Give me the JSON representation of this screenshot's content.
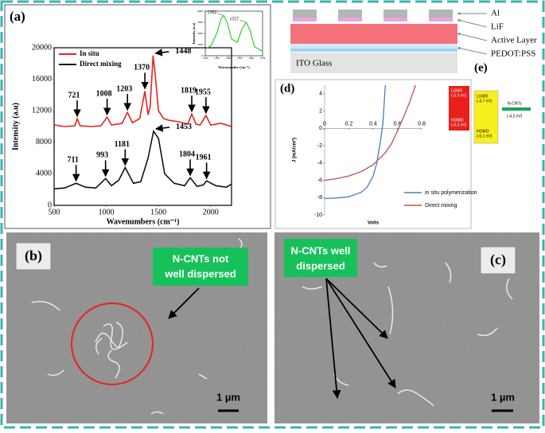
{
  "panel_a": {
    "label": "(a)",
    "chart": {
      "type": "line",
      "xlabel": "Wavenumbers (cm⁻¹)",
      "ylabel": "Intensity (a.u)",
      "xlim": [
        500,
        2200
      ],
      "xticks": [
        500,
        1000,
        1500,
        2000
      ],
      "ylim": [
        0,
        20000
      ],
      "yticks": [
        0,
        4000,
        8000,
        12000,
        16000,
        20000
      ],
      "series": [
        {
          "name": "In situ",
          "color": "#e8231f",
          "x": [
            500,
            600,
            700,
            721,
            750,
            850,
            950,
            1008,
            1050,
            1150,
            1203,
            1250,
            1320,
            1370,
            1400,
            1420,
            1448,
            1470,
            1500,
            1550,
            1600,
            1700,
            1780,
            1819,
            1860,
            1900,
            1955,
            2000,
            2100,
            2200
          ],
          "values": [
            10200,
            10000,
            10100,
            11000,
            10100,
            10000,
            10100,
            11200,
            10200,
            10400,
            11800,
            10500,
            11000,
            14500,
            11500,
            12500,
            19000,
            16500,
            12000,
            11000,
            10800,
            10600,
            10300,
            11600,
            10300,
            10200,
            11400,
            10200,
            10400,
            10000
          ]
        },
        {
          "name": "Direct mixing",
          "color": "#111111",
          "x": [
            500,
            600,
            711,
            800,
            900,
            993,
            1050,
            1120,
            1181,
            1260,
            1330,
            1400,
            1453,
            1500,
            1560,
            1650,
            1750,
            1804,
            1870,
            1930,
            1961,
            2050,
            2150,
            2200
          ],
          "values": [
            2100,
            2200,
            2800,
            2300,
            2200,
            3400,
            2500,
            3200,
            4800,
            2800,
            3000,
            6000,
            9400,
            8500,
            4000,
            2800,
            2500,
            3500,
            2400,
            2600,
            3100,
            2500,
            2300,
            2700
          ]
        }
      ],
      "peaks": [
        {
          "x": 721,
          "y": 11000
        },
        {
          "x": 1008,
          "y": 11200
        },
        {
          "x": 1203,
          "y": 11800
        },
        {
          "x": 1370,
          "y": 14500
        },
        {
          "x": 1448,
          "y": 19000
        },
        {
          "x": 1819,
          "y": 11600
        },
        {
          "x": 1955,
          "y": 11400
        },
        {
          "x": 711,
          "y": 2800
        },
        {
          "x": 993,
          "y": 3400
        },
        {
          "x": 1181,
          "y": 4800
        },
        {
          "x": 1453,
          "y": 9400
        },
        {
          "x": 1804,
          "y": 3500
        },
        {
          "x": 1961,
          "y": 3100
        }
      ]
    },
    "inset": {
      "type": "line",
      "xlabel": "Wavenumber (cm⁻¹)",
      "ylabel": "Intensity (a.u)",
      "xlim": [
        1200,
        1700
      ],
      "xticks": [
        1200,
        1300,
        1400,
        1500,
        1600,
        1700
      ],
      "ylim": [
        0,
        4000
      ],
      "yticks": [
        0,
        1000,
        2000,
        3000,
        4000
      ],
      "series": [
        {
          "color": "#2ed12e",
          "x": [
            1200,
            1250,
            1300,
            1340,
            1362,
            1390,
            1430,
            1480,
            1520,
            1557,
            1590,
            1630,
            1700
          ],
          "values": [
            600,
            900,
            2000,
            3400,
            3600,
            3000,
            1500,
            1200,
            2400,
            3000,
            2300,
            800,
            400
          ]
        }
      ],
      "peaks": [
        {
          "x": 1362,
          "y": 3600
        },
        {
          "x": 1557,
          "y": 3000
        }
      ]
    }
  },
  "device": {
    "layers": [
      "Al",
      "LiF",
      "Active Layer",
      "PEDOT:PSS"
    ],
    "substrate": "ITO Glass"
  },
  "panel_d": {
    "label": "(d)",
    "chart": {
      "type": "line",
      "xlabel": "Volts",
      "ylabel": "J (mA/cm²)",
      "xlim": [
        0,
        0.8
      ],
      "xticks": [
        0,
        0.2,
        0.4,
        0.6,
        0.8
      ],
      "ylim": [
        -10,
        5
      ],
      "yticks": [
        -10,
        -8,
        -6,
        -4,
        -2,
        0,
        2,
        4
      ],
      "series": [
        {
          "name": "in situ polymerization",
          "color": "#4a7ebb",
          "x": [
            0,
            0.1,
            0.2,
            0.3,
            0.35,
            0.4,
            0.43,
            0.46,
            0.48,
            0.5
          ],
          "values": [
            -8.1,
            -8.05,
            -7.9,
            -7.4,
            -6.8,
            -5.5,
            -4,
            -1.5,
            0.5,
            5
          ]
        },
        {
          "name": "Direct mixing",
          "color": "#c0504d",
          "x": [
            0,
            0.1,
            0.2,
            0.3,
            0.4,
            0.5,
            0.55,
            0.6,
            0.65,
            0.7,
            0.75
          ],
          "values": [
            -6,
            -5.8,
            -5.5,
            -5,
            -4.2,
            -2.8,
            -1.8,
            -0.3,
            1.3,
            3,
            5
          ]
        }
      ]
    }
  },
  "panel_e": {
    "label": "(e)",
    "donor": {
      "lumo": [
        "LUMO",
        "(-3.3 eV)"
      ],
      "homo": [
        "HOMO",
        "(-5.2 eV)"
      ]
    },
    "acceptor": {
      "lumo": [
        "LUMO",
        "(-3.7 eV)"
      ],
      "homo": [
        "HOMO",
        "(-6.1 eV)"
      ]
    },
    "cnt": {
      "name": "N-CNTs",
      "level": "(-4.2 eV)"
    }
  },
  "panel_b": {
    "label": "(b)",
    "callout": [
      "N-CNTs not",
      "well dispersed"
    ],
    "scale": "1 µm"
  },
  "panel_c": {
    "label": "(c)",
    "callout": [
      "N-CNTs well",
      "dispersed"
    ],
    "scale": "1 µm"
  }
}
